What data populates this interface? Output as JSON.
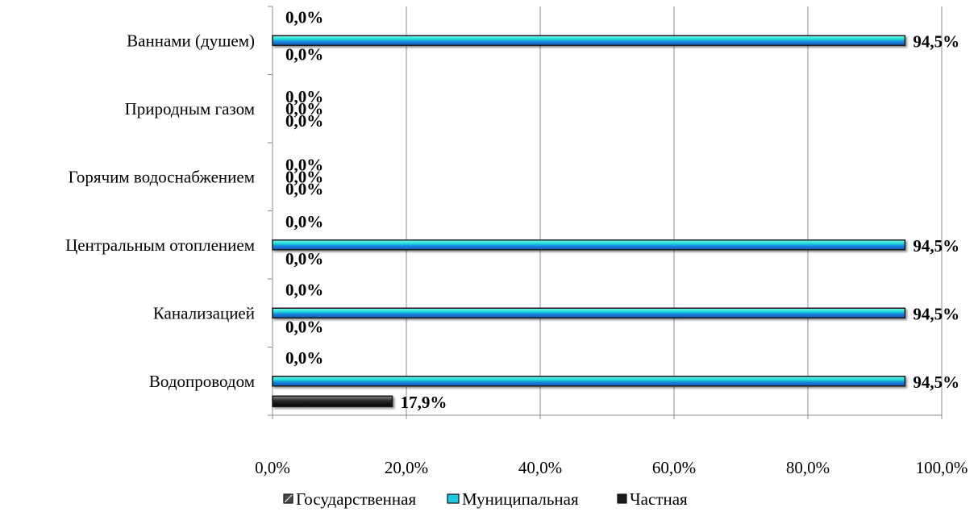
{
  "chart_data": {
    "type": "bar",
    "orientation": "horizontal",
    "categories": [
      "Ваннами (душем)",
      "Природным газом",
      "Горячим водоснабжением",
      "Центральным отоплением",
      "Канализацией",
      "Водопроводом"
    ],
    "series": [
      {
        "name": "Государственная",
        "values": [
          0.0,
          0.0,
          0.0,
          0.0,
          0.0,
          0.0
        ],
        "labels": [
          "0,0%",
          "0,0%",
          "0,0%",
          "0,0%",
          "0,0%",
          "0,0%"
        ],
        "color": "#3a3a3a"
      },
      {
        "name": "Муниципальная",
        "values": [
          94.5,
          0.0,
          0.0,
          94.5,
          94.5,
          94.5
        ],
        "labels": [
          "94,5%",
          "0,0%",
          "0,0%",
          "94,5%",
          "94,5%",
          "94,5%"
        ],
        "color": "#1ec8e0"
      },
      {
        "name": "Частная",
        "values": [
          0.0,
          0.0,
          0.0,
          0.0,
          0.0,
          17.9
        ],
        "labels": [
          "0,0%",
          "0,0%",
          "0,0%",
          "0,0%",
          "0,0%",
          "17,9%"
        ],
        "color": "#2a2a2a"
      }
    ],
    "xlim": [
      0,
      100
    ],
    "x_ticks": [
      "0,0%",
      "20,0%",
      "40,0%",
      "60,0%",
      "80,0%",
      "100,0%"
    ],
    "grid": "vertical",
    "legend_position": "bottom",
    "title": "",
    "xlabel": "",
    "ylabel": ""
  }
}
